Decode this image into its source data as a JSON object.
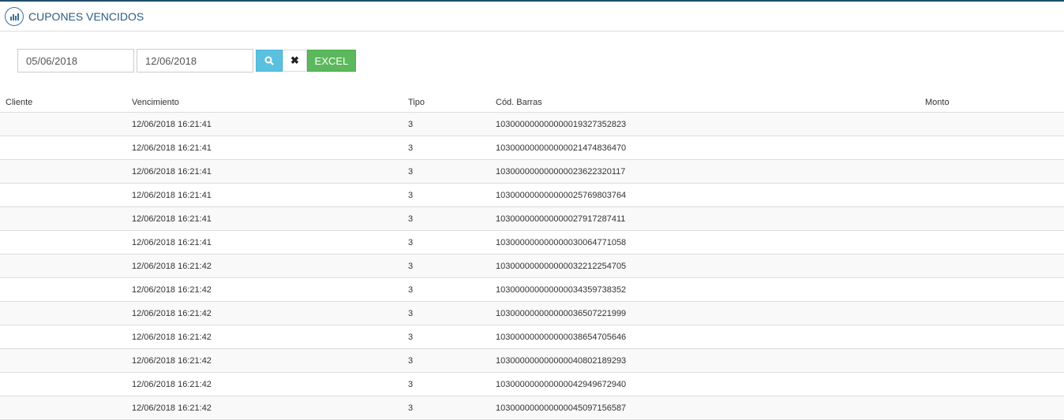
{
  "header": {
    "title": "CUPONES VENCIDOS",
    "icon": "bar-chart-icon"
  },
  "filters": {
    "date_from": "05/06/2018",
    "date_to": "12/06/2018",
    "search_icon": "search-icon",
    "clear_icon": "close-icon",
    "excel_label": "EXCEL"
  },
  "colors": {
    "search": "#5bc0de",
    "excel": "#5cb85c",
    "title": "#2d5b80"
  },
  "table": {
    "columns": [
      "Cliente",
      "Vencimiento",
      "Tipo",
      "Cód. Barras",
      "Monto"
    ],
    "rows": [
      [
        "",
        "12/06/2018 16:21:41",
        "3",
        "103000000000000019327352823",
        ""
      ],
      [
        "",
        "12/06/2018 16:21:41",
        "3",
        "103000000000000021474836470",
        ""
      ],
      [
        "",
        "12/06/2018 16:21:41",
        "3",
        "103000000000000023622320117",
        ""
      ],
      [
        "",
        "12/06/2018 16:21:41",
        "3",
        "103000000000000025769803764",
        ""
      ],
      [
        "",
        "12/06/2018 16:21:41",
        "3",
        "103000000000000027917287411",
        ""
      ],
      [
        "",
        "12/06/2018 16:21:41",
        "3",
        "103000000000000030064771058",
        ""
      ],
      [
        "",
        "12/06/2018 16:21:42",
        "3",
        "103000000000000032212254705",
        ""
      ],
      [
        "",
        "12/06/2018 16:21:42",
        "3",
        "103000000000000034359738352",
        ""
      ],
      [
        "",
        "12/06/2018 16:21:42",
        "3",
        "103000000000000036507221999",
        ""
      ],
      [
        "",
        "12/06/2018 16:21:42",
        "3",
        "103000000000000038654705646",
        ""
      ],
      [
        "",
        "12/06/2018 16:21:42",
        "3",
        "103000000000000040802189293",
        ""
      ],
      [
        "",
        "12/06/2018 16:21:42",
        "3",
        "103000000000000042949672940",
        ""
      ],
      [
        "",
        "12/06/2018 16:21:42",
        "3",
        "103000000000000045097156587",
        ""
      ]
    ]
  }
}
